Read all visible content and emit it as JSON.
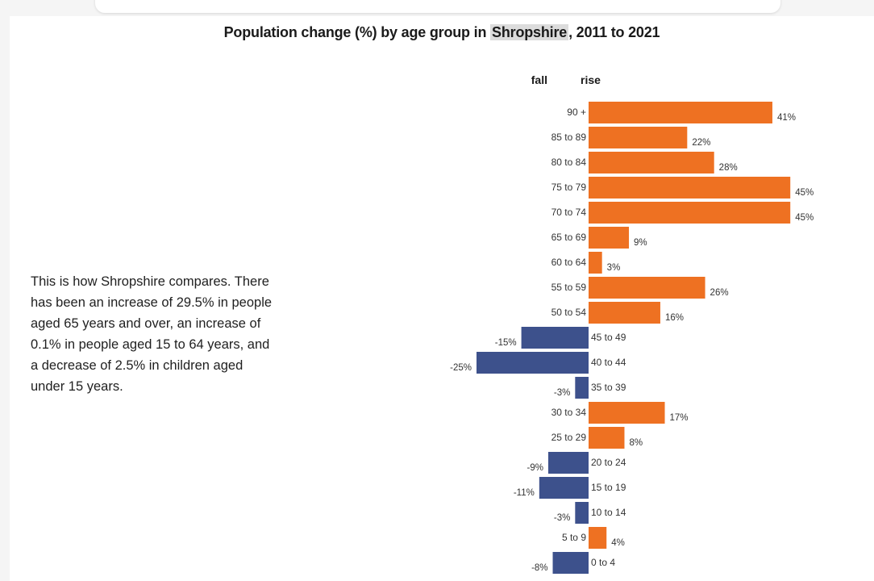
{
  "title": {
    "prefix": "Population change (%) by age group in ",
    "place": "Shropshire",
    "suffix": ", 2011 to 2021"
  },
  "description": "This is how Shropshire compares. There has been an increase of 29.5% in people aged 65 years and over, an increase of 0.1% in people aged 15 to 64 years, and a decrease of 2.5% in children aged under 15 years.",
  "colors": {
    "rise": "#ee7122",
    "fall": "#3d518c"
  },
  "chart_data": {
    "type": "bar",
    "orientation": "horizontal",
    "headers": {
      "fall": "fall",
      "rise": "rise"
    },
    "unit": "%",
    "categories": [
      "90 +",
      "85 to 89",
      "80 to 84",
      "75 to 79",
      "70 to 74",
      "65 to 69",
      "60 to 64",
      "55 to 59",
      "50 to 54",
      "45 to 49",
      "40 to 44",
      "35 to 39",
      "30 to 34",
      "25 to 29",
      "20 to 24",
      "15 to 19",
      "10 to 14",
      "5 to 9",
      "0 to 4"
    ],
    "values": [
      41,
      22,
      28,
      45,
      45,
      9,
      3,
      26,
      16,
      -15,
      -25,
      -3,
      17,
      8,
      -9,
      -11,
      -3,
      4,
      -8
    ],
    "value_labels": [
      "41%",
      "22%",
      "28%",
      "45%",
      "45%",
      "9%",
      "3%",
      "26%",
      "16%",
      "-15%",
      "-25%",
      "-3%",
      "17%",
      "8%",
      "-9%",
      "-11%",
      "-3%",
      "4%",
      "-8%"
    ]
  }
}
